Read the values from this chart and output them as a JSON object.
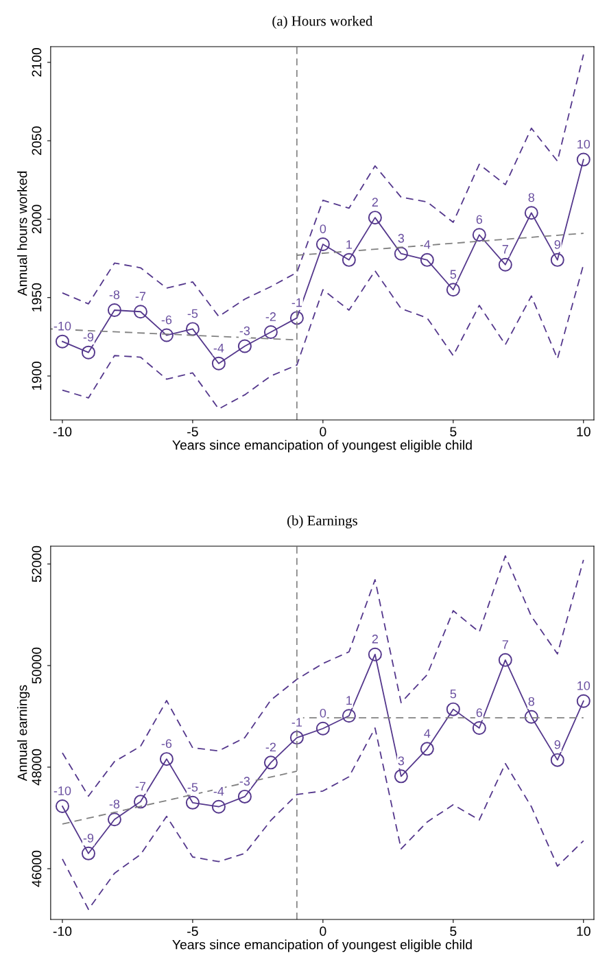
{
  "chart_data": [
    {
      "type": "line",
      "title": "(a) Hours worked",
      "xlabel": "Years since emancipation of youngest eligible child",
      "ylabel": "Annual hours worked",
      "xlim": [
        -10.45,
        10.4
      ],
      "xticks": [
        -10,
        -5,
        0,
        5,
        10
      ],
      "ylim": [
        1872,
        2110
      ],
      "yticks": [
        1900,
        1950,
        2000,
        2050,
        2100
      ],
      "grid": false,
      "legend": false,
      "ref_lines": [
        {
          "axis": "x",
          "value": -1,
          "color": "#808080",
          "line_style": "dashed"
        }
      ],
      "series": [
        {
          "color": "#54378c",
          "marker": "circle",
          "line_style": "solid",
          "x": [
            -10,
            -9,
            -8,
            -7,
            -6,
            -5,
            -4,
            -3,
            -2,
            -1,
            0,
            1,
            2,
            3,
            4,
            5,
            6,
            7,
            8,
            9,
            10
          ],
          "values": [
            1922,
            1915,
            1942,
            1941,
            1926,
            1930,
            1908,
            1919,
            1928,
            1937,
            1984,
            1974,
            2001,
            1978,
            1974,
            1955,
            1990,
            1971,
            2004,
            1974,
            2038
          ]
        },
        {
          "color": "#54378c",
          "marker": "none",
          "line_style": "dashed",
          "x": [
            -10,
            -9,
            -8,
            -7,
            -6,
            -5,
            -4,
            -3,
            -2,
            -1,
            0,
            1,
            2,
            3,
            4,
            5,
            6,
            7,
            8,
            9,
            10
          ],
          "values": [
            1891,
            1886,
            1913,
            1912,
            1898,
            1902,
            1879,
            1888,
            1900,
            1907,
            1955,
            1942,
            1967,
            1943,
            1937,
            1913,
            1945,
            1920,
            1951,
            1911,
            1971
          ]
        },
        {
          "color": "#54378c",
          "marker": "none",
          "line_style": "dashed",
          "x": [
            -10,
            -9,
            -8,
            -7,
            -6,
            -5,
            -4,
            -3,
            -2,
            -1,
            0,
            1,
            2,
            3,
            4,
            5,
            6,
            7,
            8,
            9,
            10
          ],
          "values": [
            1953,
            1946,
            1972,
            1969,
            1956,
            1960,
            1938,
            1949,
            1957,
            1966,
            2012,
            2007,
            2034,
            2014,
            2011,
            1998,
            2035,
            2022,
            2058,
            2037,
            2105
          ]
        },
        {
          "color": "#808080",
          "marker": "none",
          "line_style": "dashed",
          "x": [
            -10.45,
            -1
          ],
          "values": [
            1930,
            1923
          ]
        },
        {
          "color": "#808080",
          "marker": "none",
          "line_style": "dashed",
          "x": [
            -1,
            10
          ],
          "values": [
            1977,
            1991
          ]
        }
      ],
      "annotations": [
        {
          "text": "-10",
          "x": -10,
          "y": 1922
        },
        {
          "text": "-9",
          "x": -9,
          "y": 1915
        },
        {
          "text": "-8",
          "x": -8,
          "y": 1942
        },
        {
          "text": "-7",
          "x": -7,
          "y": 1941
        },
        {
          "text": "-6",
          "x": -6,
          "y": 1926
        },
        {
          "text": "-5",
          "x": -5,
          "y": 1930
        },
        {
          "text": "-4",
          "x": -4,
          "y": 1908
        },
        {
          "text": "-3",
          "x": -3,
          "y": 1919
        },
        {
          "text": "-2",
          "x": -2,
          "y": 1928
        },
        {
          "text": "-1",
          "x": -1,
          "y": 1937
        },
        {
          "text": "0",
          "x": 0,
          "y": 1984
        },
        {
          "text": "1",
          "x": 1,
          "y": 1974
        },
        {
          "text": "2",
          "x": 2,
          "y": 2001
        },
        {
          "text": "3",
          "x": 3,
          "y": 1978
        },
        {
          "text": "4",
          "x": 4,
          "y": 1974
        },
        {
          "text": "5",
          "x": 5,
          "y": 1955
        },
        {
          "text": "6",
          "x": 6,
          "y": 1990
        },
        {
          "text": "7",
          "x": 7,
          "y": 1971
        },
        {
          "text": "8",
          "x": 8,
          "y": 2004
        },
        {
          "text": "9",
          "x": 9,
          "y": 1974
        },
        {
          "text": "10",
          "x": 10,
          "y": 2038
        }
      ]
    },
    {
      "type": "line",
      "title": "(b) Earnings",
      "xlabel": "Years since emancipation of youngest eligible child",
      "ylabel": "Annual earnings",
      "xlim": [
        -10.45,
        10.4
      ],
      "xticks": [
        -10,
        -5,
        0,
        5,
        10
      ],
      "ylim": [
        45000,
        52350
      ],
      "yticks": [
        46000,
        48000,
        50000,
        52000
      ],
      "grid": false,
      "legend": false,
      "ref_lines": [
        {
          "axis": "x",
          "value": -1,
          "color": "#808080",
          "line_style": "dashed"
        }
      ],
      "series": [
        {
          "color": "#54378c",
          "marker": "circle",
          "line_style": "solid",
          "x": [
            -10,
            -9,
            -8,
            -7,
            -6,
            -5,
            -4,
            -3,
            -2,
            -1,
            0,
            1,
            2,
            3,
            4,
            5,
            6,
            7,
            8,
            9,
            10
          ],
          "values": [
            47230,
            46300,
            46970,
            47320,
            48160,
            47300,
            47220,
            47420,
            48090,
            48580,
            48760,
            49010,
            50220,
            47820,
            48360,
            49140,
            48770,
            50110,
            48990,
            48140,
            49300
          ]
        },
        {
          "color": "#54378c",
          "marker": "none",
          "line_style": "dashed",
          "x": [
            -10,
            -9,
            -8,
            -7,
            -6,
            -5,
            -4,
            -3,
            -2,
            -1,
            0,
            1,
            2,
            3,
            4,
            5,
            6,
            7,
            8,
            9,
            10
          ],
          "values": [
            46190,
            45200,
            45910,
            46280,
            47030,
            46230,
            46140,
            46300,
            46950,
            47460,
            47530,
            47810,
            48770,
            46390,
            46920,
            47260,
            46960,
            48070,
            47220,
            46050,
            46550
          ]
        },
        {
          "color": "#54378c",
          "marker": "none",
          "line_style": "dashed",
          "x": [
            -10,
            -9,
            -8,
            -7,
            -6,
            -5,
            -4,
            -3,
            -2,
            -1,
            0,
            1,
            2,
            3,
            4,
            5,
            6,
            7,
            8,
            9,
            10
          ],
          "values": [
            48280,
            47430,
            48110,
            48410,
            49310,
            48380,
            48320,
            48580,
            49320,
            49730,
            50040,
            50270,
            51690,
            49270,
            49820,
            51080,
            50660,
            52160,
            50970,
            50230,
            52080
          ]
        },
        {
          "color": "#808080",
          "marker": "none",
          "line_style": "dashed",
          "x": [
            -10,
            -1
          ],
          "values": [
            46880,
            47920
          ]
        },
        {
          "color": "#808080",
          "marker": "none",
          "line_style": "dashed",
          "x": [
            -1,
            10
          ],
          "values": [
            48970,
            48970
          ]
        }
      ],
      "annotations": [
        {
          "text": "-10",
          "x": -10,
          "y": 47230
        },
        {
          "text": "-9",
          "x": -9,
          "y": 46300
        },
        {
          "text": "-8",
          "x": -8,
          "y": 46970
        },
        {
          "text": "-7",
          "x": -7,
          "y": 47320
        },
        {
          "text": "-6",
          "x": -6,
          "y": 48160
        },
        {
          "text": "-5",
          "x": -5,
          "y": 47300
        },
        {
          "text": "-4",
          "x": -4,
          "y": 47220
        },
        {
          "text": "-3",
          "x": -3,
          "y": 47420
        },
        {
          "text": "-2",
          "x": -2,
          "y": 48090
        },
        {
          "text": "-1",
          "x": -1,
          "y": 48580
        },
        {
          "text": "0",
          "x": 0,
          "y": 48760
        },
        {
          "text": "1",
          "x": 1,
          "y": 49010
        },
        {
          "text": "2",
          "x": 2,
          "y": 50220
        },
        {
          "text": "3",
          "x": 3,
          "y": 47820
        },
        {
          "text": "4",
          "x": 4,
          "y": 48360
        },
        {
          "text": "5",
          "x": 5,
          "y": 49140
        },
        {
          "text": "6",
          "x": 6,
          "y": 48770
        },
        {
          "text": "7",
          "x": 7,
          "y": 50110
        },
        {
          "text": "8",
          "x": 8,
          "y": 48990
        },
        {
          "text": "9",
          "x": 9,
          "y": 48140
        },
        {
          "text": "10",
          "x": 10,
          "y": 49300
        }
      ]
    }
  ]
}
